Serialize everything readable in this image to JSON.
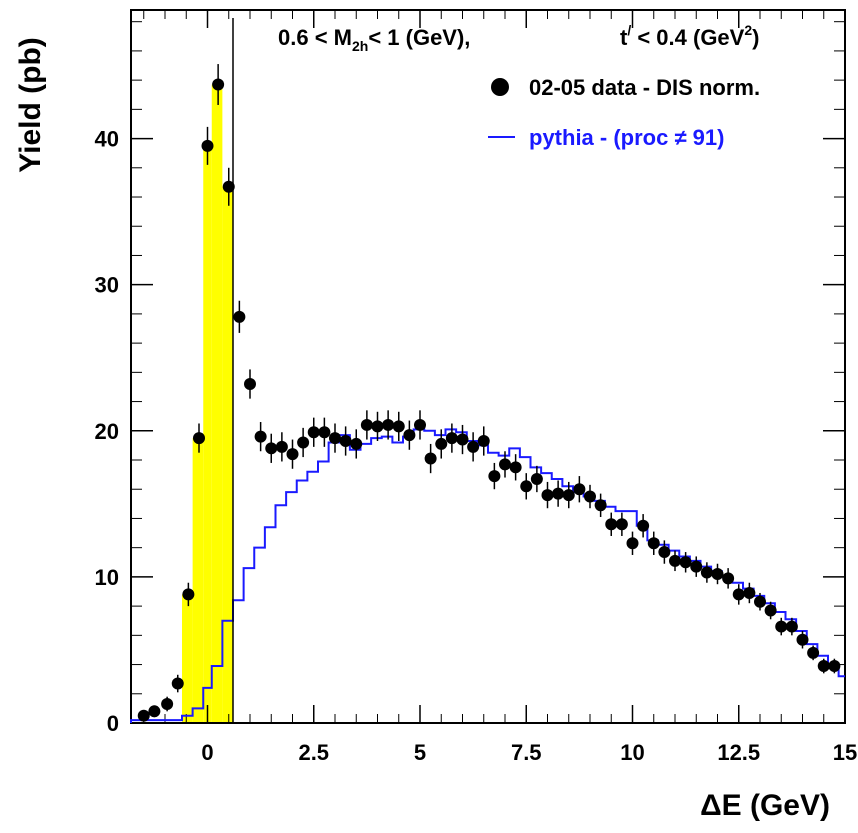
{
  "chart_data": {
    "type": "scatter",
    "title": "",
    "xlabel": "ΔE (GeV)",
    "ylabel": "Yield (pb)",
    "xlim": [
      -1.8,
      15.0
    ],
    "ylim": [
      0,
      48.8
    ],
    "x_ticks": [
      0,
      2.5,
      5,
      7.5,
      10,
      12.5,
      15
    ],
    "x_tick_labels": [
      "0",
      "2.5",
      "5",
      "7.5",
      "10",
      "12.5",
      "15"
    ],
    "y_ticks": [
      0,
      10,
      20,
      30,
      40
    ],
    "y_tick_labels": [
      "0",
      "10",
      "20",
      "30",
      "40"
    ],
    "annotation": {
      "cut_left": "0.6 < M",
      "cut_left_sub": "2h",
      "cut_left_right": "< 1 (GeV),",
      "cut_right": "t",
      "cut_right_sup": "/",
      "cut_right_mid": " < 0.4 (GeV",
      "cut_right_sup2": "2",
      "cut_right_end": ")"
    },
    "legend_position": "top-right",
    "legend": [
      {
        "label": "02-05 data - DIS norm.",
        "marker": "filled-circle",
        "color": "#000000"
      },
      {
        "label": "pythia - (proc ≠ 91)",
        "marker": "line",
        "color": "#1a1aff"
      }
    ],
    "exclusive_cut_x": 0.6,
    "series": [
      {
        "name": "02-05 data - DIS norm.",
        "kind": "points",
        "color": "#000000",
        "x": [
          -1.5,
          -1.25,
          -0.95,
          -0.7,
          -0.45,
          -0.2,
          0.0,
          0.25,
          0.5,
          0.75,
          1.0,
          1.25,
          1.5,
          1.75,
          2.0,
          2.25,
          2.5,
          2.75,
          3.0,
          3.25,
          3.5,
          3.75,
          4.0,
          4.25,
          4.5,
          4.75,
          5.0,
          5.25,
          5.5,
          5.75,
          6.0,
          6.25,
          6.5,
          6.75,
          7.0,
          7.25,
          7.5,
          7.75,
          8.0,
          8.25,
          8.5,
          8.75,
          9.0,
          9.25,
          9.5,
          9.75,
          10.0,
          10.25,
          10.5,
          10.75,
          11.0,
          11.25,
          11.5,
          11.75,
          12.0,
          12.25,
          12.5,
          12.75,
          13.0,
          13.25,
          13.5,
          13.75,
          14.0,
          14.25,
          14.5,
          14.75
        ],
        "y": [
          0.5,
          0.8,
          1.3,
          2.7,
          8.8,
          19.5,
          39.5,
          43.7,
          36.7,
          27.8,
          23.2,
          19.6,
          18.8,
          18.9,
          18.4,
          19.2,
          19.9,
          19.9,
          19.5,
          19.3,
          19.1,
          20.4,
          20.3,
          20.4,
          20.3,
          19.7,
          20.4,
          18.1,
          19.1,
          19.5,
          19.4,
          18.9,
          19.3,
          16.9,
          17.7,
          17.5,
          16.2,
          16.7,
          15.6,
          15.7,
          15.6,
          16.0,
          15.5,
          14.9,
          13.6,
          13.6,
          12.3,
          13.5,
          12.3,
          11.7,
          11.1,
          11.0,
          10.7,
          10.3,
          10.2,
          9.9,
          8.8,
          8.9,
          8.3,
          7.7,
          6.6,
          6.6,
          5.7,
          4.8,
          3.9,
          3.9
        ],
        "err": [
          0.3,
          0.4,
          0.5,
          0.6,
          0.8,
          1.0,
          1.3,
          1.4,
          1.3,
          1.1,
          1.0,
          1.0,
          1.0,
          1.0,
          1.0,
          1.0,
          1.0,
          1.0,
          1.0,
          1.0,
          1.0,
          1.0,
          1.0,
          1.0,
          1.0,
          1.0,
          1.0,
          1.0,
          1.0,
          1.0,
          1.0,
          1.0,
          1.0,
          0.9,
          0.9,
          0.9,
          0.9,
          0.9,
          0.9,
          0.9,
          0.9,
          0.9,
          0.8,
          0.8,
          0.8,
          0.8,
          0.8,
          0.8,
          0.8,
          0.8,
          0.7,
          0.7,
          0.7,
          0.7,
          0.7,
          0.7,
          0.7,
          0.7,
          0.6,
          0.6,
          0.6,
          0.6,
          0.6,
          0.5,
          0.5,
          0.5
        ]
      },
      {
        "name": "pythia - (proc ≠ 91)",
        "kind": "step",
        "color": "#1a1aff",
        "edges": [
          -1.8,
          -0.6,
          -0.35,
          -0.1,
          0.1,
          0.35,
          0.6,
          0.85,
          1.1,
          1.35,
          1.6,
          1.85,
          2.1,
          2.35,
          2.6,
          2.85,
          3.1,
          3.35,
          3.6,
          3.85,
          4.1,
          4.35,
          4.6,
          4.85,
          5.1,
          5.35,
          5.6,
          5.85,
          6.1,
          6.35,
          6.6,
          6.85,
          7.1,
          7.35,
          7.6,
          7.85,
          8.1,
          8.35,
          8.6,
          8.85,
          9.1,
          9.35,
          9.6,
          9.85,
          10.1,
          10.35,
          10.6,
          10.85,
          11.1,
          11.35,
          11.6,
          11.85,
          12.1,
          12.35,
          12.6,
          12.85,
          13.1,
          13.35,
          13.6,
          13.85,
          14.1,
          14.35,
          14.6,
          14.85,
          15.0
        ],
        "values": [
          0.2,
          0.5,
          1.0,
          2.4,
          3.9,
          7.0,
          8.4,
          10.6,
          12.0,
          13.4,
          14.9,
          15.8,
          16.6,
          17.2,
          17.9,
          19.2,
          19.7,
          18.7,
          19.1,
          19.5,
          19.6,
          19.2,
          19.6,
          20.1,
          20.0,
          19.7,
          20.1,
          19.9,
          19.3,
          19.0,
          18.5,
          18.3,
          18.8,
          18.2,
          17.5,
          17.1,
          16.7,
          16.2,
          15.8,
          15.5,
          15.2,
          14.8,
          14.5,
          14.5,
          13.5,
          12.5,
          12.2,
          11.8,
          11.4,
          11.1,
          10.7,
          10.4,
          10.0,
          9.6,
          9.2,
          8.7,
          8.2,
          7.6,
          7.1,
          6.3,
          5.4,
          4.6,
          3.8,
          3.2
        ]
      },
      {
        "name": "",
        "kind": "filled-step",
        "color": "#ffff00",
        "edges": [
          -0.6,
          -0.35,
          -0.1,
          0.1,
          0.35,
          0.6
        ],
        "values": [
          8.8,
          19.5,
          39.5,
          43.7,
          36.7
        ]
      }
    ]
  }
}
